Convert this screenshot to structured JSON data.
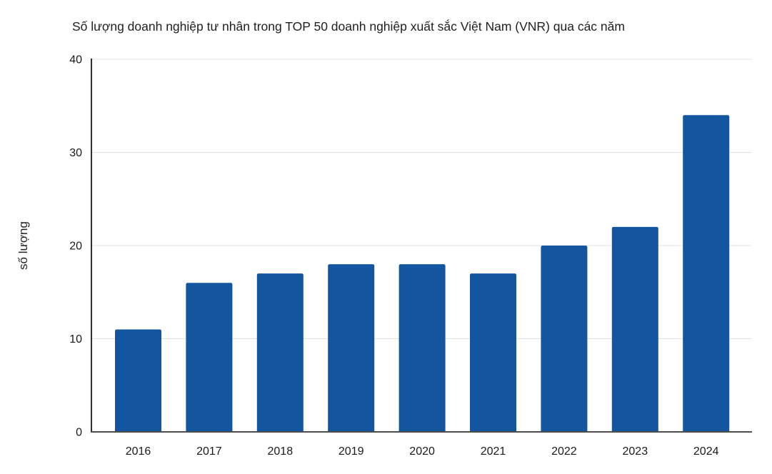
{
  "page": {
    "background": "#ffffff"
  },
  "chart_data": {
    "type": "bar",
    "title": "Số lượng doanh nghiệp tư nhân trong TOP 50 doanh nghiệp xuất sắc Việt Nam (VNR) qua các năm",
    "xlabel": "",
    "ylabel": "số lượng",
    "categories": [
      "2016",
      "2017",
      "2018",
      "2019",
      "2020",
      "2021",
      "2022",
      "2023",
      "2024"
    ],
    "values": [
      11,
      16,
      17,
      18,
      18,
      17,
      20,
      22,
      34
    ],
    "ylim": [
      0,
      40
    ],
    "yticks": [
      0,
      10,
      20,
      30,
      40
    ],
    "grid": true,
    "legend": false,
    "colors": {
      "bar": "#1455a0",
      "gridline": "#e0e0e0",
      "y_axis_line": "#2e2e2e",
      "x_axis_line": "#4d4d4d",
      "text": "#1a1a1a"
    }
  }
}
